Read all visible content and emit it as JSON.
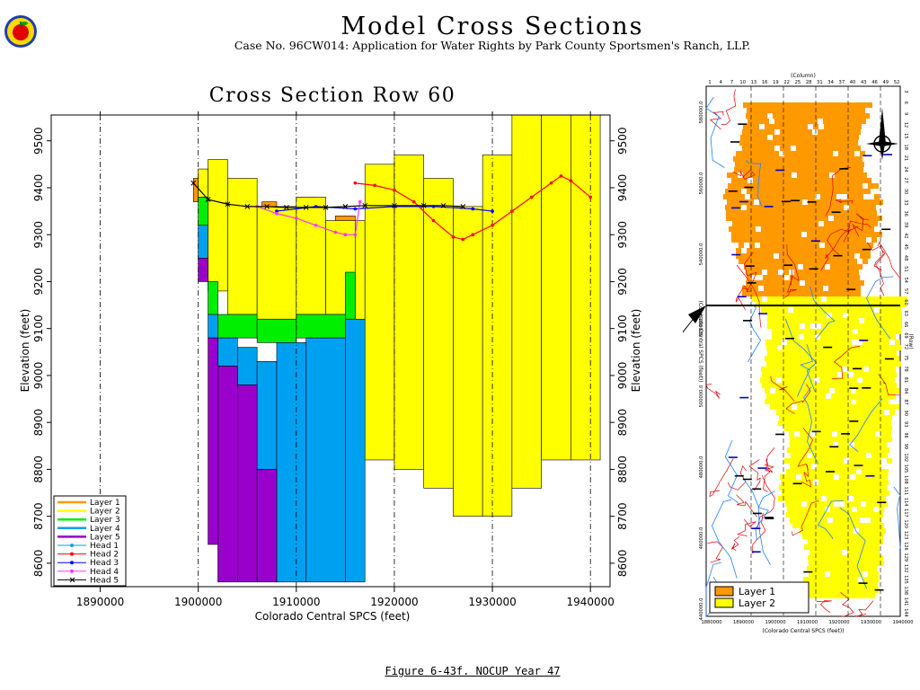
{
  "header": {
    "title": "Model Cross Sections",
    "subtitle": "Case No. 96CW014: Application for Water Rights by Park County Sportsmen's Ranch, LLP.",
    "footer": "Figure 6-43f.  NOCUP Year 47"
  },
  "chart_data": [
    {
      "type": "area",
      "title": "Cross Section Row 60",
      "xlabel": "Colorado Central SPCS (feet)",
      "ylabel": "Elevation (feet)",
      "xlim": [
        1885000,
        1942000
      ],
      "ylim": [
        8550,
        9555
      ],
      "xticks": [
        "1890000",
        "1900000",
        "1910000",
        "1920000",
        "1930000",
        "1940000"
      ],
      "yticks": [
        "8600",
        "8700",
        "8800",
        "8900",
        "9000",
        "9100",
        "9200",
        "9300",
        "9400",
        "9500"
      ],
      "grid": "vertical-dashed",
      "legend": {
        "position": "bottom-left",
        "entries": [
          {
            "label": "Layer  1",
            "color": "#ff9900",
            "style": "line"
          },
          {
            "label": "Layer  2",
            "color": "#ffff00",
            "style": "line"
          },
          {
            "label": "Layer  3",
            "color": "#00ee00",
            "style": "line"
          },
          {
            "label": "Layer  4",
            "color": "#00a0f0",
            "style": "line"
          },
          {
            "label": "Layer  5",
            "color": "#9900cc",
            "style": "line"
          },
          {
            "label": "Head  1",
            "color": "#00a0f0",
            "style": "dot"
          },
          {
            "label": "Head  2",
            "color": "#ff0000",
            "style": "dot"
          },
          {
            "label": "Head  3",
            "color": "#0000ff",
            "style": "dot"
          },
          {
            "label": "Head  4",
            "color": "#ff33ff",
            "style": "dot"
          },
          {
            "label": "Head  5",
            "color": "#000000",
            "style": "x"
          }
        ]
      },
      "layers": [
        {
          "name": "Layer 1",
          "color": "#ff9900",
          "segments": [
            [
              1899500,
              1900000,
              9370,
              9420
            ],
            [
              1906500,
              1908000,
              9330,
              9370
            ],
            [
              1910000,
              1912000,
              9340,
              9380
            ],
            [
              1914000,
              1916000,
              9300,
              9340
            ]
          ]
        },
        {
          "name": "Layer 2",
          "color": "#ffff00",
          "segments": [
            [
              1900000,
              1901000,
              9380,
              9440
            ],
            [
              1901000,
              1903000,
              9180,
              9460
            ],
            [
              1903000,
              1906000,
              9130,
              9420
            ],
            [
              1906000,
              1910000,
              9120,
              9360
            ],
            [
              1910000,
              1913000,
              9130,
              9380
            ],
            [
              1913000,
              1916000,
              9130,
              9330
            ],
            [
              1916000,
              1917000,
              8650,
              9330
            ],
            [
              1917000,
              1920000,
              8820,
              9450
            ],
            [
              1920000,
              1923000,
              8800,
              9470
            ],
            [
              1923000,
              1926000,
              8760,
              9420
            ],
            [
              1926000,
              1929000,
              8700,
              9360
            ],
            [
              1929000,
              1932000,
              8700,
              9470
            ],
            [
              1932000,
              1935000,
              8760,
              9570
            ],
            [
              1935000,
              1938000,
              8820,
              9570
            ],
            [
              1938000,
              1941000,
              8820,
              9570
            ]
          ]
        },
        {
          "name": "Layer 3",
          "color": "#00ee00",
          "segments": [
            [
              1900000,
              1901000,
              9320,
              9380
            ],
            [
              1901000,
              1902000,
              9130,
              9200
            ],
            [
              1902000,
              1906000,
              9080,
              9130
            ],
            [
              1906000,
              1910000,
              9070,
              9120
            ],
            [
              1910000,
              1915000,
              9080,
              9130
            ],
            [
              1915000,
              1916000,
              9120,
              9220
            ],
            [
              1916000,
              1917000,
              8620,
              8680
            ]
          ]
        },
        {
          "name": "Layer 4",
          "color": "#00a0f0",
          "segments": [
            [
              1900000,
              1901000,
              9250,
              9320
            ],
            [
              1901000,
              1902000,
              9080,
              9130
            ],
            [
              1902000,
              1904000,
              9020,
              9080
            ],
            [
              1904000,
              1906000,
              8980,
              9060
            ],
            [
              1906000,
              1908000,
              8580,
              9030
            ],
            [
              1908000,
              1911000,
              8560,
              9070
            ],
            [
              1911000,
              1915000,
              8560,
              9080
            ],
            [
              1915000,
              1917000,
              8560,
              9120
            ]
          ]
        },
        {
          "name": "Layer 5",
          "color": "#9900cc",
          "segments": [
            [
              1900000,
              1901000,
              9200,
              9250
            ],
            [
              1901000,
              1902000,
              8640,
              9080
            ],
            [
              1902000,
              1904000,
              8560,
              9020
            ],
            [
              1904000,
              1906000,
              8560,
              8980
            ],
            [
              1906000,
              1908000,
              8560,
              8800
            ]
          ]
        }
      ],
      "heads": [
        {
          "name": "Head 2",
          "color": "#ff0000",
          "x": [
            1916000,
            1918000,
            1920000,
            1922000,
            1924000,
            1926000,
            1927000,
            1928000,
            1930000,
            1932000,
            1934000,
            1936000,
            1937000,
            1938000,
            1940000
          ],
          "y": [
            9410,
            9405,
            9395,
            9370,
            9330,
            9295,
            9290,
            9300,
            9320,
            9350,
            9380,
            9410,
            9425,
            9415,
            9380
          ]
        },
        {
          "name": "Head 3",
          "color": "#0000ff",
          "x": [
            1908000,
            1912000,
            1916000,
            1920000,
            1924000,
            1928000,
            1930000
          ],
          "y": [
            9350,
            9360,
            9355,
            9360,
            9360,
            9355,
            9350
          ]
        },
        {
          "name": "Head 4",
          "color": "#ff33ff",
          "x": [
            1906000,
            1908000,
            1910000,
            1912000,
            1914000,
            1915000,
            1916000,
            1916500
          ],
          "y": [
            9360,
            9345,
            9335,
            9320,
            9305,
            9300,
            9300,
            9370
          ]
        },
        {
          "name": "Head 5",
          "color": "#000000",
          "x": [
            1899500,
            1901000,
            1903000,
            1905000,
            1907000,
            1909000,
            1911000,
            1913000,
            1915000,
            1917000,
            1920000,
            1923000,
            1925000,
            1927000
          ],
          "y": [
            9410,
            9375,
            9365,
            9360,
            9360,
            9358,
            9358,
            9358,
            9360,
            9362,
            9362,
            9362,
            9362,
            9360
          ]
        }
      ]
    },
    {
      "type": "heatmap",
      "title": "",
      "xlabel": "(Colorado Central SPCS (feet))",
      "ylabel": "(Colorado Central SPCS (feet))",
      "column_label": "(Column)",
      "row_label": "(Row)",
      "xticks": [
        "1880000",
        "1890000",
        "1900000",
        "1910000",
        "1920000",
        "1930000",
        "1940000"
      ],
      "yticks": [
        "440000.0",
        "460000.0",
        "480000.0",
        "500000.0",
        "520000.0",
        "540000.0",
        "560000.0",
        "580000.0"
      ],
      "column_ticks": [
        "1",
        "4",
        "7",
        "10",
        "13",
        "16",
        "19",
        "22",
        "25",
        "28",
        "31",
        "34",
        "37",
        "40",
        "43",
        "46",
        "49",
        "52"
      ],
      "row_ticks": [
        "3",
        "6",
        "9",
        "12",
        "15",
        "18",
        "21",
        "24",
        "27",
        "30",
        "33",
        "36",
        "39",
        "42",
        "45",
        "48",
        "51",
        "54",
        "57",
        "60",
        "63",
        "66",
        "69",
        "72",
        "75",
        "78",
        "81",
        "84",
        "87",
        "90",
        "93",
        "96",
        "99",
        "102",
        "105",
        "108",
        "111",
        "114",
        "117",
        "120",
        "123",
        "126",
        "129",
        "132",
        "135",
        "138",
        "141",
        "144"
      ],
      "section_row": "60",
      "legend": {
        "position": "bottom-left",
        "entries": [
          {
            "label": "Layer  1",
            "color": "#ff9900"
          },
          {
            "label": "Layer  2",
            "color": "#ffff00"
          }
        ]
      }
    }
  ]
}
